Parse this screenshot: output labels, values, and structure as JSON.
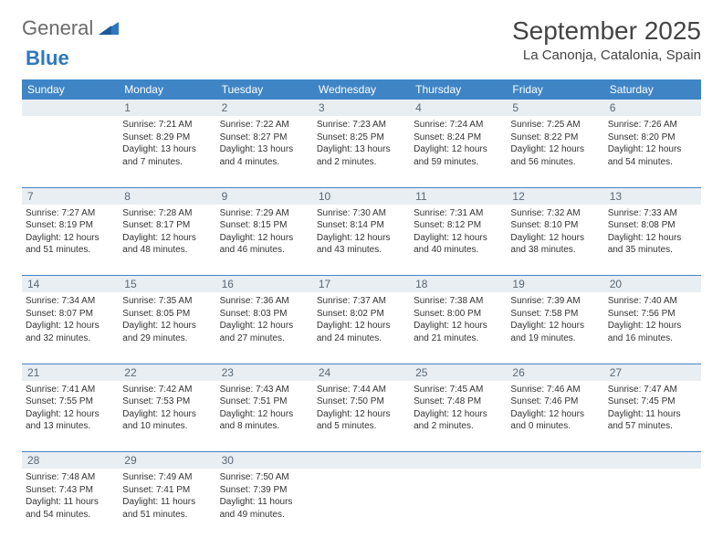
{
  "logo": {
    "general": "General",
    "blue": "Blue"
  },
  "header": {
    "title": "September 2025",
    "location": "La Canonja, Catalonia, Spain"
  },
  "colors": {
    "header_bar": "#3f85c6",
    "daynum_bg": "#e9eef3",
    "daynum_text": "#586875",
    "border": "#3f85c6",
    "logo_blue": "#2f78bf",
    "logo_gray": "#6a6a6a",
    "title_text": "#444444"
  },
  "day_labels": [
    "Sunday",
    "Monday",
    "Tuesday",
    "Wednesday",
    "Thursday",
    "Friday",
    "Saturday"
  ],
  "weeks": [
    {
      "nums": [
        "",
        "1",
        "2",
        "3",
        "4",
        "5",
        "6"
      ],
      "cells": [
        null,
        {
          "sunrise": "7:21 AM",
          "sunset": "8:29 PM",
          "daylight": "13 hours and 7 minutes."
        },
        {
          "sunrise": "7:22 AM",
          "sunset": "8:27 PM",
          "daylight": "13 hours and 4 minutes."
        },
        {
          "sunrise": "7:23 AM",
          "sunset": "8:25 PM",
          "daylight": "13 hours and 2 minutes."
        },
        {
          "sunrise": "7:24 AM",
          "sunset": "8:24 PM",
          "daylight": "12 hours and 59 minutes."
        },
        {
          "sunrise": "7:25 AM",
          "sunset": "8:22 PM",
          "daylight": "12 hours and 56 minutes."
        },
        {
          "sunrise": "7:26 AM",
          "sunset": "8:20 PM",
          "daylight": "12 hours and 54 minutes."
        }
      ]
    },
    {
      "nums": [
        "7",
        "8",
        "9",
        "10",
        "11",
        "12",
        "13"
      ],
      "cells": [
        {
          "sunrise": "7:27 AM",
          "sunset": "8:19 PM",
          "daylight": "12 hours and 51 minutes."
        },
        {
          "sunrise": "7:28 AM",
          "sunset": "8:17 PM",
          "daylight": "12 hours and 48 minutes."
        },
        {
          "sunrise": "7:29 AM",
          "sunset": "8:15 PM",
          "daylight": "12 hours and 46 minutes."
        },
        {
          "sunrise": "7:30 AM",
          "sunset": "8:14 PM",
          "daylight": "12 hours and 43 minutes."
        },
        {
          "sunrise": "7:31 AM",
          "sunset": "8:12 PM",
          "daylight": "12 hours and 40 minutes."
        },
        {
          "sunrise": "7:32 AM",
          "sunset": "8:10 PM",
          "daylight": "12 hours and 38 minutes."
        },
        {
          "sunrise": "7:33 AM",
          "sunset": "8:08 PM",
          "daylight": "12 hours and 35 minutes."
        }
      ]
    },
    {
      "nums": [
        "14",
        "15",
        "16",
        "17",
        "18",
        "19",
        "20"
      ],
      "cells": [
        {
          "sunrise": "7:34 AM",
          "sunset": "8:07 PM",
          "daylight": "12 hours and 32 minutes."
        },
        {
          "sunrise": "7:35 AM",
          "sunset": "8:05 PM",
          "daylight": "12 hours and 29 minutes."
        },
        {
          "sunrise": "7:36 AM",
          "sunset": "8:03 PM",
          "daylight": "12 hours and 27 minutes."
        },
        {
          "sunrise": "7:37 AM",
          "sunset": "8:02 PM",
          "daylight": "12 hours and 24 minutes."
        },
        {
          "sunrise": "7:38 AM",
          "sunset": "8:00 PM",
          "daylight": "12 hours and 21 minutes."
        },
        {
          "sunrise": "7:39 AM",
          "sunset": "7:58 PM",
          "daylight": "12 hours and 19 minutes."
        },
        {
          "sunrise": "7:40 AM",
          "sunset": "7:56 PM",
          "daylight": "12 hours and 16 minutes."
        }
      ]
    },
    {
      "nums": [
        "21",
        "22",
        "23",
        "24",
        "25",
        "26",
        "27"
      ],
      "cells": [
        {
          "sunrise": "7:41 AM",
          "sunset": "7:55 PM",
          "daylight": "12 hours and 13 minutes."
        },
        {
          "sunrise": "7:42 AM",
          "sunset": "7:53 PM",
          "daylight": "12 hours and 10 minutes."
        },
        {
          "sunrise": "7:43 AM",
          "sunset": "7:51 PM",
          "daylight": "12 hours and 8 minutes."
        },
        {
          "sunrise": "7:44 AM",
          "sunset": "7:50 PM",
          "daylight": "12 hours and 5 minutes."
        },
        {
          "sunrise": "7:45 AM",
          "sunset": "7:48 PM",
          "daylight": "12 hours and 2 minutes."
        },
        {
          "sunrise": "7:46 AM",
          "sunset": "7:46 PM",
          "daylight": "12 hours and 0 minutes."
        },
        {
          "sunrise": "7:47 AM",
          "sunset": "7:45 PM",
          "daylight": "11 hours and 57 minutes."
        }
      ]
    },
    {
      "nums": [
        "28",
        "29",
        "30",
        "",
        "",
        "",
        ""
      ],
      "cells": [
        {
          "sunrise": "7:48 AM",
          "sunset": "7:43 PM",
          "daylight": "11 hours and 54 minutes."
        },
        {
          "sunrise": "7:49 AM",
          "sunset": "7:41 PM",
          "daylight": "11 hours and 51 minutes."
        },
        {
          "sunrise": "7:50 AM",
          "sunset": "7:39 PM",
          "daylight": "11 hours and 49 minutes."
        },
        null,
        null,
        null,
        null
      ]
    }
  ],
  "labels": {
    "sunrise": "Sunrise:",
    "sunset": "Sunset:",
    "daylight": "Daylight:"
  }
}
